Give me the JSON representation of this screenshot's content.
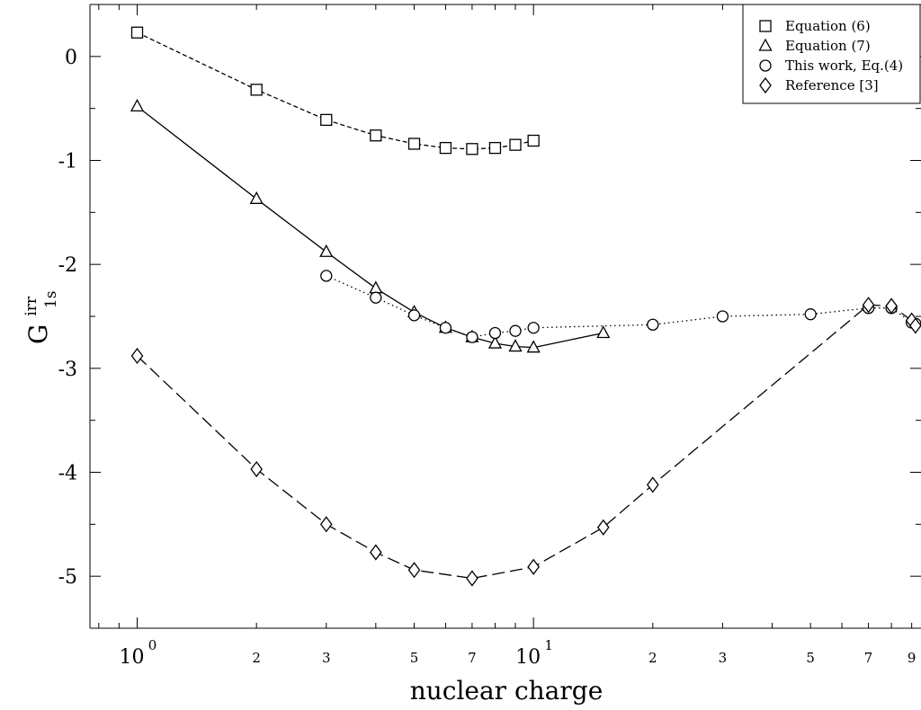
{
  "chart_data": {
    "type": "line",
    "title": "",
    "xlabel": "nuclear charge",
    "ylabel": "G",
    "ylabel_sup": "irr",
    "ylabel_sub": "1s",
    "xscale": "log",
    "xlim": [
      0.76,
      95
    ],
    "ylim": [
      -5.5,
      0.5
    ],
    "grid": false,
    "legend_position": "top-right",
    "x_major_tick_labels": [
      {
        "value": 1,
        "base": "10",
        "exp": "0"
      },
      {
        "value": 10,
        "base": "10",
        "exp": "1"
      }
    ],
    "x_minor_tick_labels": [
      {
        "value": 2,
        "label": "2"
      },
      {
        "value": 3,
        "label": "3"
      },
      {
        "value": 5,
        "label": "5"
      },
      {
        "value": 7,
        "label": "7"
      },
      {
        "value": 20,
        "label": "2"
      },
      {
        "value": 30,
        "label": "3"
      },
      {
        "value": 50,
        "label": "5"
      },
      {
        "value": 70,
        "label": "7"
      },
      {
        "value": 90,
        "label": "9"
      }
    ],
    "y_tick_labels": [
      {
        "value": 0,
        "label": "0"
      },
      {
        "value": -1,
        "label": "-1"
      },
      {
        "value": -2,
        "label": "-2"
      },
      {
        "value": -3,
        "label": "-3"
      },
      {
        "value": -4,
        "label": "-4"
      },
      {
        "value": -5,
        "label": "-5"
      }
    ],
    "series": [
      {
        "name": "Equation (6)",
        "marker": "square",
        "dash": "5,3",
        "x": [
          1,
          2,
          3,
          4,
          5,
          6,
          7,
          8,
          9,
          10
        ],
        "y": [
          0.23,
          -0.32,
          -0.61,
          -0.76,
          -0.84,
          -0.88,
          -0.89,
          -0.88,
          -0.85,
          -0.81
        ]
      },
      {
        "name": "Equation (7)",
        "marker": "triangle",
        "dash": "",
        "x": [
          1,
          2,
          3,
          4,
          5,
          6,
          7,
          8,
          9,
          10,
          15
        ],
        "y": [
          -0.48,
          -1.37,
          -1.88,
          -2.23,
          -2.46,
          -2.61,
          -2.7,
          -2.76,
          -2.79,
          -2.8,
          -2.66
        ]
      },
      {
        "name": "This work, Eq.(4)",
        "marker": "circle",
        "dash": "1.5,3.5",
        "x": [
          3,
          4,
          5,
          6,
          7,
          8,
          9,
          10,
          20,
          30,
          50,
          70,
          80,
          90,
          92
        ],
        "y": [
          -2.11,
          -2.32,
          -2.49,
          -2.61,
          -2.7,
          -2.66,
          -2.64,
          -2.61,
          -2.58,
          -2.5,
          -2.48,
          -2.42,
          -2.42,
          -2.56,
          -2.57
        ]
      },
      {
        "name": "Reference [3]",
        "marker": "diamond",
        "dash": "14,6",
        "x": [
          1,
          2,
          3,
          4,
          5,
          7,
          10,
          15,
          20,
          70,
          80,
          90,
          92
        ],
        "y": [
          -2.88,
          -3.97,
          -4.5,
          -4.77,
          -4.94,
          -5.02,
          -4.91,
          -4.53,
          -4.12,
          -2.39,
          -2.4,
          -2.54,
          -2.59
        ]
      }
    ]
  }
}
